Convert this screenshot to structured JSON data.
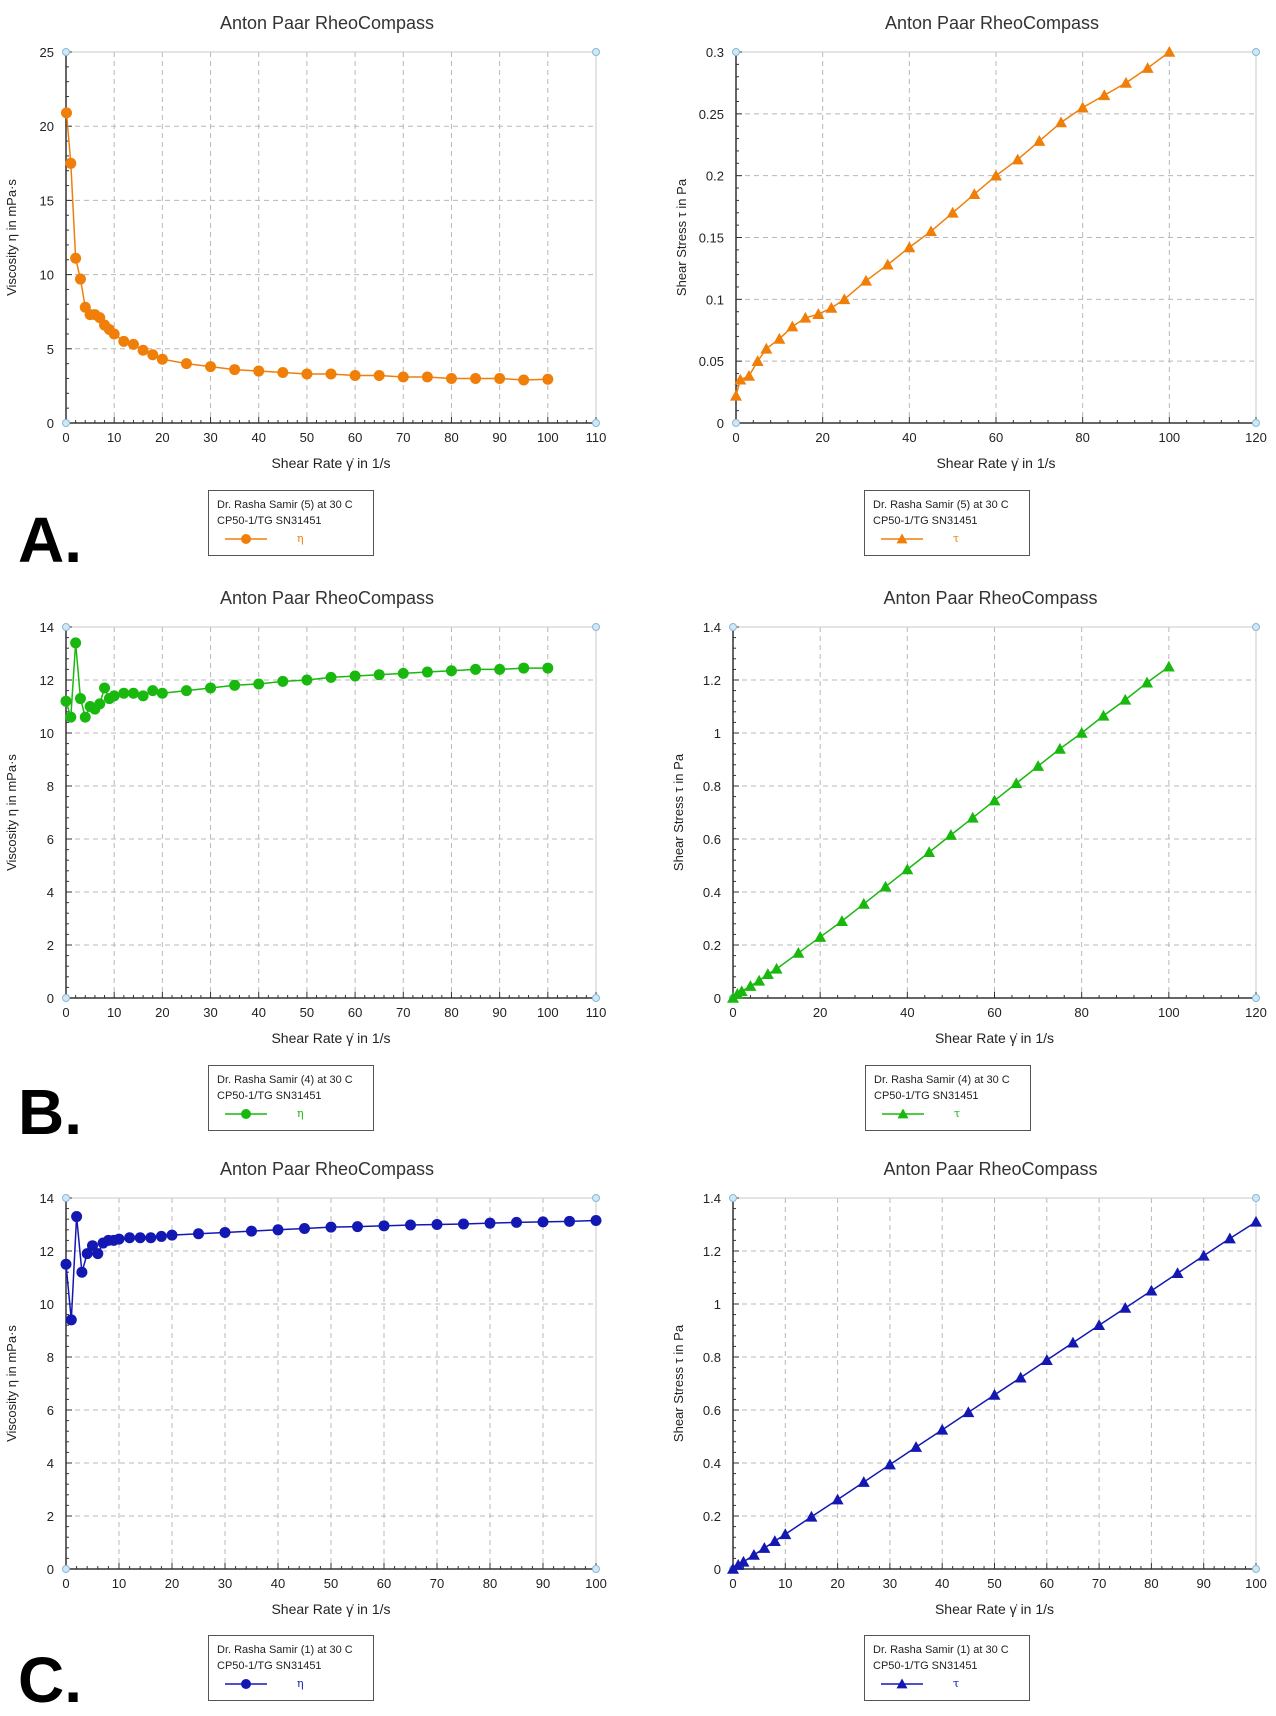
{
  "panel_letters": [
    "A.",
    "B.",
    "C."
  ],
  "chart_data": [
    {
      "id": "A-viscosity",
      "type": "scatter",
      "title": "Anton Paar RheoCompass",
      "xlabel": "Shear Rate γ̇ in 1/s",
      "ylabel": "Viscosity η in mPa·s",
      "xlim": [
        0,
        110
      ],
      "ylim": [
        0,
        25
      ],
      "xticks": [
        "0",
        "10",
        "20",
        "30",
        "40",
        "50",
        "60",
        "70",
        "80",
        "90",
        "100",
        "110"
      ],
      "yticks": [
        "0",
        "5",
        "10",
        "15",
        "20",
        "25"
      ],
      "marker": "circle",
      "color": "#f07f09",
      "grid": true,
      "series": [
        {
          "name": "η",
          "x": [
            0.1,
            1,
            2,
            3,
            4,
            5,
            6,
            7,
            8,
            9,
            10,
            12,
            14,
            16,
            18,
            20,
            25,
            30,
            35,
            40,
            45,
            50,
            55,
            60,
            65,
            70,
            75,
            80,
            85,
            90,
            95,
            100
          ],
          "y": [
            20.9,
            17.5,
            11.1,
            9.7,
            7.8,
            7.3,
            7.3,
            7.1,
            6.6,
            6.3,
            6.0,
            5.5,
            5.3,
            4.9,
            4.6,
            4.3,
            4.0,
            3.8,
            3.6,
            3.5,
            3.4,
            3.3,
            3.3,
            3.2,
            3.2,
            3.1,
            3.1,
            3.0,
            3.0,
            3.0,
            2.9,
            2.95
          ]
        }
      ],
      "legend": {
        "lines": [
          "Dr. Rasha Samir (5) at 30 C",
          "CP50-1/TG SN31451"
        ],
        "entry": "η"
      }
    },
    {
      "id": "A-stress",
      "type": "scatter",
      "title": "Anton Paar RheoCompass",
      "xlabel": "Shear Rate γ̇ in 1/s",
      "ylabel": "Shear Stress τ in Pa",
      "xlim": [
        0,
        120
      ],
      "ylim": [
        0,
        0.3
      ],
      "xticks": [
        "0",
        "20",
        "40",
        "60",
        "80",
        "100",
        "120"
      ],
      "yticks": [
        "0",
        "0.05",
        "0.1",
        "0.15",
        "0.2",
        "0.25",
        "0.3"
      ],
      "marker": "triangle",
      "color": "#f07f09",
      "grid": true,
      "series": [
        {
          "name": "τ",
          "x": [
            0,
            1,
            3,
            5,
            7,
            10,
            13,
            16,
            19,
            22,
            25,
            30,
            35,
            40,
            45,
            50,
            55,
            60,
            65,
            70,
            75,
            80,
            85,
            90,
            95,
            100
          ],
          "y": [
            0.022,
            0.035,
            0.038,
            0.05,
            0.06,
            0.068,
            0.078,
            0.085,
            0.088,
            0.093,
            0.1,
            0.115,
            0.128,
            0.142,
            0.155,
            0.17,
            0.185,
            0.2,
            0.213,
            0.228,
            0.243,
            0.255,
            0.265,
            0.275,
            0.287,
            0.3
          ]
        }
      ],
      "legend": {
        "lines": [
          "Dr. Rasha Samir (5) at 30 C",
          "CP50-1/TG SN31451"
        ],
        "entry": "τ"
      }
    },
    {
      "id": "B-viscosity",
      "type": "scatter",
      "title": "Anton Paar RheoCompass",
      "xlabel": "Shear Rate γ̇ in 1/s",
      "ylabel": "Viscosity η in mPa·s",
      "xlim": [
        0,
        110
      ],
      "ylim": [
        0,
        14
      ],
      "xticks": [
        "0",
        "10",
        "20",
        "30",
        "40",
        "50",
        "60",
        "70",
        "80",
        "90",
        "100",
        "110"
      ],
      "yticks": [
        "0",
        "2",
        "4",
        "6",
        "8",
        "10",
        "12",
        "14"
      ],
      "marker": "circle",
      "color": "#19b80f",
      "grid": true,
      "series": [
        {
          "name": "η",
          "x": [
            0,
            1,
            2,
            3,
            4,
            5,
            6,
            7,
            8,
            9,
            10,
            12,
            14,
            16,
            18,
            20,
            25,
            30,
            35,
            40,
            45,
            50,
            55,
            60,
            65,
            70,
            75,
            80,
            85,
            90,
            95,
            100
          ],
          "y": [
            11.2,
            10.6,
            13.4,
            11.3,
            10.6,
            11.0,
            10.9,
            11.1,
            11.7,
            11.3,
            11.4,
            11.5,
            11.5,
            11.4,
            11.6,
            11.5,
            11.6,
            11.7,
            11.8,
            11.85,
            11.95,
            12.0,
            12.1,
            12.15,
            12.2,
            12.25,
            12.3,
            12.35,
            12.4,
            12.4,
            12.45,
            12.45
          ]
        }
      ],
      "legend": {
        "lines": [
          "Dr. Rasha Samir (4) at 30 C",
          "CP50-1/TG SN31451"
        ],
        "entry": "η"
      }
    },
    {
      "id": "B-stress",
      "type": "scatter",
      "title": "Anton Paar RheoCompass",
      "xlabel": "Shear Rate γ̇ in 1/s",
      "ylabel": "Shear Stress τ in Pa",
      "xlim": [
        0,
        120
      ],
      "ylim": [
        0,
        1.4
      ],
      "xticks": [
        "0",
        "20",
        "40",
        "60",
        "80",
        "100",
        "120"
      ],
      "yticks": [
        "0",
        "0.2",
        "0.4",
        "0.6",
        "0.8",
        "1",
        "1.2",
        "1.4"
      ],
      "marker": "triangle",
      "color": "#19b80f",
      "grid": true,
      "series": [
        {
          "name": "τ",
          "x": [
            0,
            1,
            2,
            4,
            6,
            8,
            10,
            15,
            20,
            25,
            30,
            35,
            40,
            45,
            50,
            55,
            60,
            65,
            70,
            75,
            80,
            85,
            90,
            95,
            100
          ],
          "y": [
            0.0,
            0.015,
            0.025,
            0.045,
            0.065,
            0.09,
            0.11,
            0.17,
            0.23,
            0.29,
            0.355,
            0.42,
            0.485,
            0.55,
            0.615,
            0.68,
            0.745,
            0.81,
            0.875,
            0.94,
            1.0,
            1.065,
            1.125,
            1.19,
            1.25
          ]
        }
      ],
      "legend": {
        "lines": [
          "Dr. Rasha Samir (4) at 30 C",
          "CP50-1/TG SN31451"
        ],
        "entry": "τ"
      }
    },
    {
      "id": "C-viscosity",
      "type": "scatter",
      "title": "Anton Paar RheoCompass",
      "xlabel": "Shear Rate γ̇ in 1/s",
      "ylabel": "Viscosity η in mPa·s",
      "xlim": [
        0,
        100
      ],
      "ylim": [
        0,
        14
      ],
      "xticks": [
        "0",
        "10",
        "20",
        "30",
        "40",
        "50",
        "60",
        "70",
        "80",
        "90",
        "100"
      ],
      "yticks": [
        "0",
        "2",
        "4",
        "6",
        "8",
        "10",
        "12",
        "14"
      ],
      "marker": "circle",
      "color": "#1418b3",
      "grid": true,
      "series": [
        {
          "name": "η",
          "x": [
            0,
            1,
            2,
            3,
            4,
            5,
            6,
            7,
            8,
            9,
            10,
            12,
            14,
            16,
            18,
            20,
            25,
            30,
            35,
            40,
            45,
            50,
            55,
            60,
            65,
            70,
            75,
            80,
            85,
            90,
            95,
            100
          ],
          "y": [
            11.5,
            9.4,
            13.3,
            11.2,
            11.9,
            12.2,
            11.9,
            12.3,
            12.4,
            12.4,
            12.45,
            12.5,
            12.5,
            12.5,
            12.55,
            12.6,
            12.65,
            12.7,
            12.75,
            12.8,
            12.85,
            12.9,
            12.92,
            12.95,
            12.98,
            13.0,
            13.02,
            13.05,
            13.08,
            13.1,
            13.12,
            13.15
          ]
        }
      ],
      "legend": {
        "lines": [
          "Dr. Rasha Samir (1) at 30 C",
          "CP50-1/TG SN31451"
        ],
        "entry": "η"
      }
    },
    {
      "id": "C-stress",
      "type": "scatter",
      "title": "Anton Paar RheoCompass",
      "xlabel": "Shear Rate γ̇ in 1/s",
      "ylabel": "Shear Stress τ in Pa",
      "xlim": [
        0,
        100
      ],
      "ylim": [
        0,
        1.4
      ],
      "xticks": [
        "0",
        "10",
        "20",
        "30",
        "40",
        "50",
        "60",
        "70",
        "80",
        "90",
        "100"
      ],
      "yticks": [
        "0",
        "0.2",
        "0.4",
        "0.6",
        "0.8",
        "1",
        "1.2",
        "1.4"
      ],
      "marker": "triangle",
      "color": "#1418b3",
      "grid": true,
      "series": [
        {
          "name": "τ",
          "x": [
            0,
            1,
            2,
            4,
            6,
            8,
            10,
            15,
            20,
            25,
            30,
            35,
            40,
            45,
            50,
            55,
            60,
            65,
            70,
            75,
            80,
            85,
            90,
            95,
            100
          ],
          "y": [
            0.0,
            0.015,
            0.027,
            0.053,
            0.079,
            0.105,
            0.131,
            0.197,
            0.262,
            0.328,
            0.394,
            0.46,
            0.525,
            0.591,
            0.657,
            0.722,
            0.788,
            0.854,
            0.92,
            0.985,
            1.05,
            1.116,
            1.182,
            1.247,
            1.31
          ]
        }
      ],
      "legend": {
        "lines": [
          "Dr. Rasha Samir (1) at 30 C",
          "CP50-1/TG SN31451"
        ],
        "entry": "τ"
      }
    }
  ]
}
